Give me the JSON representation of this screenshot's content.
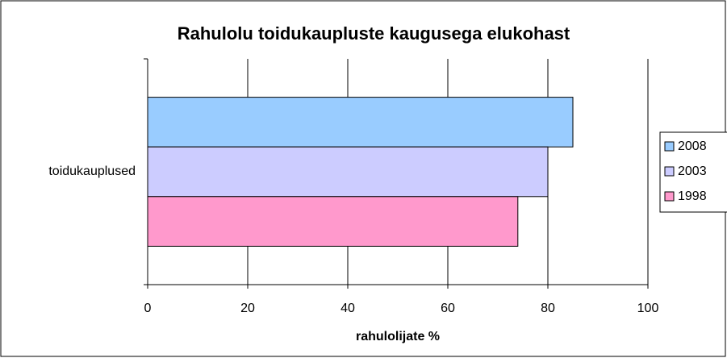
{
  "chart_data": {
    "type": "hbar",
    "title": "Rahulolu toidukaupluste kaugusega elukohast",
    "xlabel": "rahulolijate %",
    "categories": [
      "toidukauplused"
    ],
    "series": [
      {
        "name": "2008",
        "color": "#99ccff",
        "values": [
          85
        ]
      },
      {
        "name": "2003",
        "color": "#ccccff",
        "values": [
          80
        ]
      },
      {
        "name": "1998",
        "color": "#ff99cc",
        "values": [
          74
        ]
      }
    ],
    "xlim": [
      0,
      100
    ],
    "xticks": [
      0,
      20,
      40,
      60,
      80,
      100
    ],
    "grid": true,
    "legend": "right"
  }
}
